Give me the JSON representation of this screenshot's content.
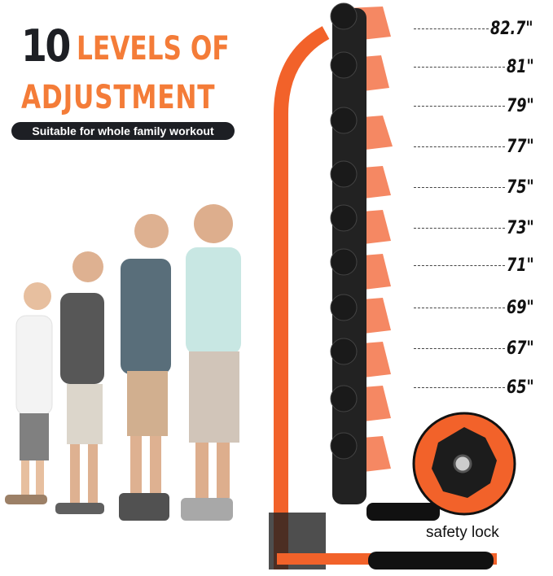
{
  "headline": {
    "number": "10",
    "line1": "LEVELS OF",
    "line2": "ADJUSTMENT"
  },
  "subtitle": "Suitable for whole family workout",
  "height_levels": [
    "82.7\"",
    "81\"",
    "79\"",
    "77\"",
    "75\"",
    "73\"",
    "71\"",
    "69\"",
    "67\"",
    "65\""
  ],
  "safety_lock_label": "safety lock",
  "colors": {
    "accent": "#f47c38",
    "frame": "#f2622a",
    "dark": "#1d1f24"
  }
}
